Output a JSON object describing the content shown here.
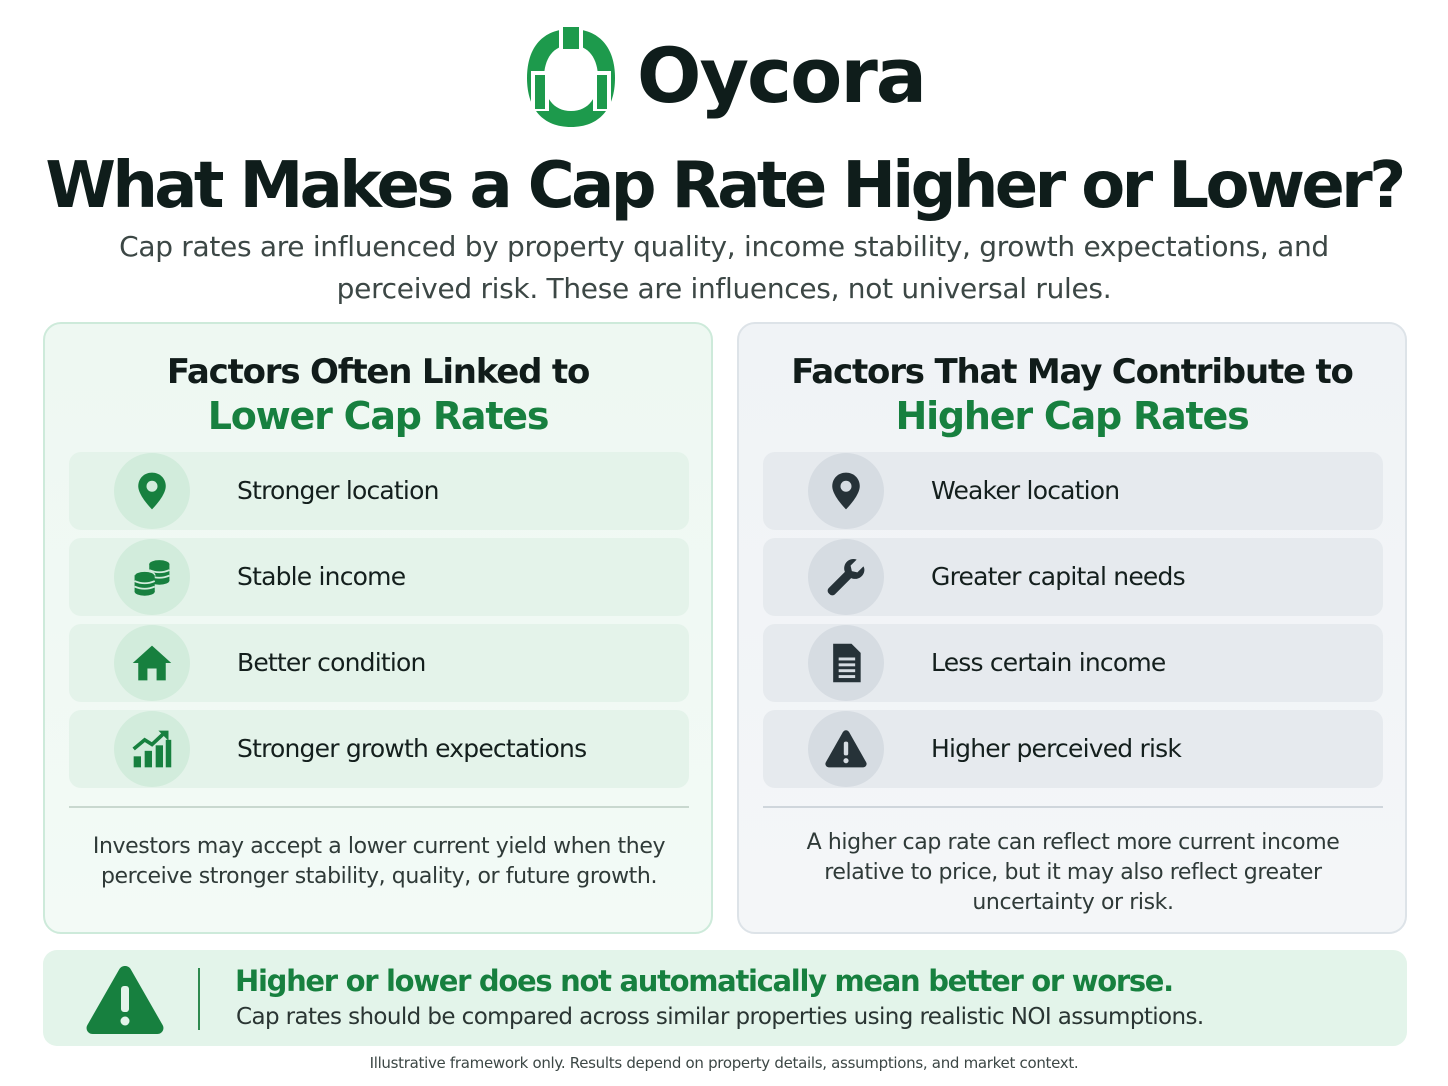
{
  "brand": {
    "name": "Oycora",
    "logo_icon": "oycora-logo-icon",
    "color": "#1d9a4c"
  },
  "title": "What Makes a Cap Rate Higher or Lower?",
  "subtitle": "Cap rates are influenced by property quality, income stability, growth expectations, and perceived risk. These are influences, not universal rules.",
  "lower_panel": {
    "heading_line1": "Factors Often Linked to",
    "heading_line2": "Lower Cap Rates",
    "items": [
      {
        "label": "Stronger location",
        "icon": "location-pin-icon"
      },
      {
        "label": "Stable income",
        "icon": "coins-stack-icon"
      },
      {
        "label": "Better condition",
        "icon": "house-icon"
      },
      {
        "label": "Stronger growth expectations",
        "icon": "growth-chart-icon"
      }
    ],
    "note": "Investors may accept a lower current yield when they perceive stronger stability, quality, or future growth.",
    "accent_color": "#17803f"
  },
  "higher_panel": {
    "heading_line1": "Factors That May Contribute to",
    "heading_line2": "Higher Cap Rates",
    "items": [
      {
        "label": "Weaker location",
        "icon": "location-pin-icon"
      },
      {
        "label": "Greater capital needs",
        "icon": "wrench-icon"
      },
      {
        "label": "Less certain income",
        "icon": "document-icon"
      },
      {
        "label": "Higher perceived risk",
        "icon": "warning-icon"
      }
    ],
    "note": "A higher cap rate can reflect more current income relative to price, but it may also reflect greater uncertainty or risk.",
    "icon_color": "#263238"
  },
  "callout": {
    "icon": "warning-icon",
    "heading": "Higher or lower does not automatically mean better or worse.",
    "text": "Cap rates should be compared across similar properties using realistic NOI assumptions."
  },
  "footnote": "Illustrative framework only. Results depend on property details, assumptions, and market context."
}
